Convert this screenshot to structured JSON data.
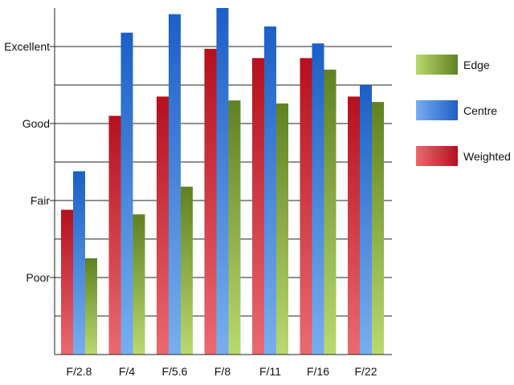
{
  "chart_data": {
    "type": "bar",
    "title": "",
    "xlabel": "",
    "ylabel": "",
    "categories": [
      "F/2.8",
      "F/4",
      "F/5.6",
      "F/8",
      "F/11",
      "F/16",
      "F/22"
    ],
    "y_tick_labels": [
      {
        "label": "Poor",
        "value": 1
      },
      {
        "label": "Fair",
        "value": 2
      },
      {
        "label": "Good",
        "value": 3
      },
      {
        "label": "Excellent",
        "value": 4
      }
    ],
    "ylim": [
      0,
      4
    ],
    "minor_grid_step": 0.5,
    "grid": true,
    "legend_position": "right",
    "series": [
      {
        "name": "Weighted",
        "key": "weighted",
        "values": [
          1.88,
          3.1,
          3.35,
          3.97,
          3.85,
          3.85,
          3.35
        ]
      },
      {
        "name": "Centre",
        "key": "centre",
        "values": [
          2.38,
          4.18,
          4.42,
          4.5,
          4.26,
          4.04,
          3.5
        ]
      },
      {
        "name": "Edge",
        "key": "edge",
        "values": [
          1.25,
          1.82,
          2.18,
          3.3,
          3.26,
          3.7,
          3.28
        ]
      }
    ],
    "legend_order": [
      "Edge",
      "Centre",
      "Weighted"
    ],
    "colors": {
      "weighted": {
        "top": "#b5101e",
        "bottom": "#ea6a70"
      },
      "centre": {
        "top": "#1c5fc6",
        "bottom": "#78aef0"
      },
      "edge": {
        "top": "#5f8220",
        "bottom": "#bad96e"
      }
    }
  }
}
